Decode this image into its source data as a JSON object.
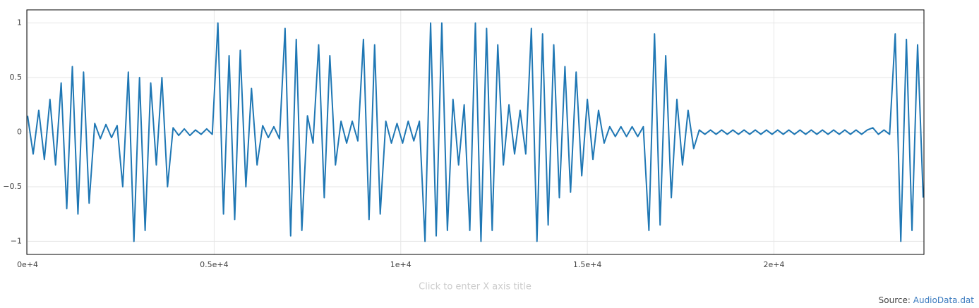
{
  "chart_data": {
    "type": "line",
    "color": "#1f77b4",
    "grid": true,
    "xlabel": "Click to enter X axis title",
    "xlim": [
      -20,
      24020
    ],
    "xticks": [
      {
        "value": 0,
        "label": "0e+4"
      },
      {
        "value": 5000,
        "label": "0.5e+4"
      },
      {
        "value": 10000,
        "label": "1e+4"
      },
      {
        "value": 15000,
        "label": "1.5e+4"
      },
      {
        "value": 20000,
        "label": "2e+4"
      }
    ],
    "ylim": [
      -1.12,
      1.12
    ],
    "yticks": [
      {
        "value": -1,
        "label": "−1"
      },
      {
        "value": -0.5,
        "label": "−0.5"
      },
      0,
      0.5,
      1
    ],
    "x": [
      0,
      150,
      300,
      450,
      600,
      750,
      900,
      1050,
      1200,
      1350,
      1500,
      1650,
      1800,
      1950,
      2100,
      2250,
      2400,
      2550,
      2700,
      2850,
      3000,
      3150,
      3300,
      3450,
      3600,
      3750,
      3900,
      4050,
      4200,
      4350,
      4500,
      4650,
      4800,
      4950,
      5100,
      5250,
      5400,
      5550,
      5700,
      5850,
      6000,
      6150,
      6300,
      6450,
      6600,
      6750,
      6900,
      7050,
      7200,
      7350,
      7500,
      7650,
      7800,
      7950,
      8100,
      8250,
      8400,
      8550,
      8700,
      8850,
      9000,
      9150,
      9300,
      9450,
      9600,
      9750,
      9900,
      10050,
      10200,
      10350,
      10500,
      10650,
      10800,
      10950,
      11100,
      11250,
      11400,
      11550,
      11700,
      11850,
      12000,
      12150,
      12300,
      12450,
      12600,
      12750,
      12900,
      13050,
      13200,
      13350,
      13500,
      13650,
      13800,
      13950,
      14100,
      14250,
      14400,
      14550,
      14700,
      14850,
      15000,
      15150,
      15300,
      15450,
      15600,
      15750,
      15900,
      16050,
      16200,
      16350,
      16500,
      16650,
      16800,
      16950,
      17100,
      17250,
      17400,
      17550,
      17700,
      17850,
      18000,
      18150,
      18300,
      18450,
      18600,
      18750,
      18900,
      19050,
      19200,
      19350,
      19500,
      19650,
      19800,
      19950,
      20100,
      20250,
      20400,
      20550,
      20700,
      20850,
      21000,
      21150,
      21300,
      21450,
      21600,
      21750,
      21900,
      22050,
      22200,
      22350,
      22500,
      22650,
      22800,
      22950,
      23100,
      23250,
      23400,
      23550,
      23700,
      23850,
      24000
    ],
    "values": [
      0.15,
      -0.2,
      0.2,
      -0.25,
      0.3,
      -0.3,
      0.45,
      -0.7,
      0.6,
      -0.75,
      0.55,
      -0.65,
      0.08,
      -0.06,
      0.07,
      -0.05,
      0.06,
      -0.5,
      0.55,
      -1.0,
      0.5,
      -0.9,
      0.45,
      -0.3,
      0.5,
      -0.5,
      0.04,
      -0.03,
      0.03,
      -0.03,
      0.02,
      -0.02,
      0.03,
      -0.02,
      1.0,
      -0.75,
      0.7,
      -0.8,
      0.75,
      -0.5,
      0.4,
      -0.3,
      0.06,
      -0.05,
      0.05,
      -0.06,
      0.95,
      -0.95,
      0.85,
      -0.9,
      0.15,
      -0.1,
      0.8,
      -0.6,
      0.7,
      -0.3,
      0.1,
      -0.1,
      0.1,
      -0.08,
      0.85,
      -0.8,
      0.8,
      -0.75,
      0.1,
      -0.1,
      0.08,
      -0.1,
      0.1,
      -0.08,
      0.1,
      -1.0,
      1.0,
      -0.95,
      1.0,
      -0.9,
      0.3,
      -0.3,
      0.25,
      -0.9,
      1.0,
      -1.0,
      0.95,
      -0.9,
      0.8,
      -0.3,
      0.25,
      -0.2,
      0.2,
      -0.2,
      0.95,
      -1.0,
      0.9,
      -0.85,
      0.8,
      -0.6,
      0.6,
      -0.55,
      0.55,
      -0.4,
      0.3,
      -0.25,
      0.2,
      -0.1,
      0.05,
      -0.04,
      0.05,
      -0.04,
      0.05,
      -0.04,
      0.05,
      -0.9,
      0.9,
      -0.85,
      0.7,
      -0.6,
      0.3,
      -0.3,
      0.2,
      -0.15,
      0.02,
      -0.02,
      0.02,
      -0.02,
      0.02,
      -0.02,
      0.02,
      -0.02,
      0.02,
      -0.02,
      0.02,
      -0.02,
      0.02,
      -0.02,
      0.02,
      -0.02,
      0.02,
      -0.02,
      0.02,
      -0.02,
      0.02,
      -0.02,
      0.02,
      -0.02,
      0.02,
      -0.02,
      0.02,
      -0.02,
      0.02,
      -0.02,
      0.02,
      0.04,
      -0.02,
      0.02,
      -0.02,
      0.9,
      -1.0,
      0.85,
      -0.9,
      0.8,
      -0.6
    ]
  },
  "source": {
    "label": "Source:",
    "link": "AudioData.dat"
  }
}
